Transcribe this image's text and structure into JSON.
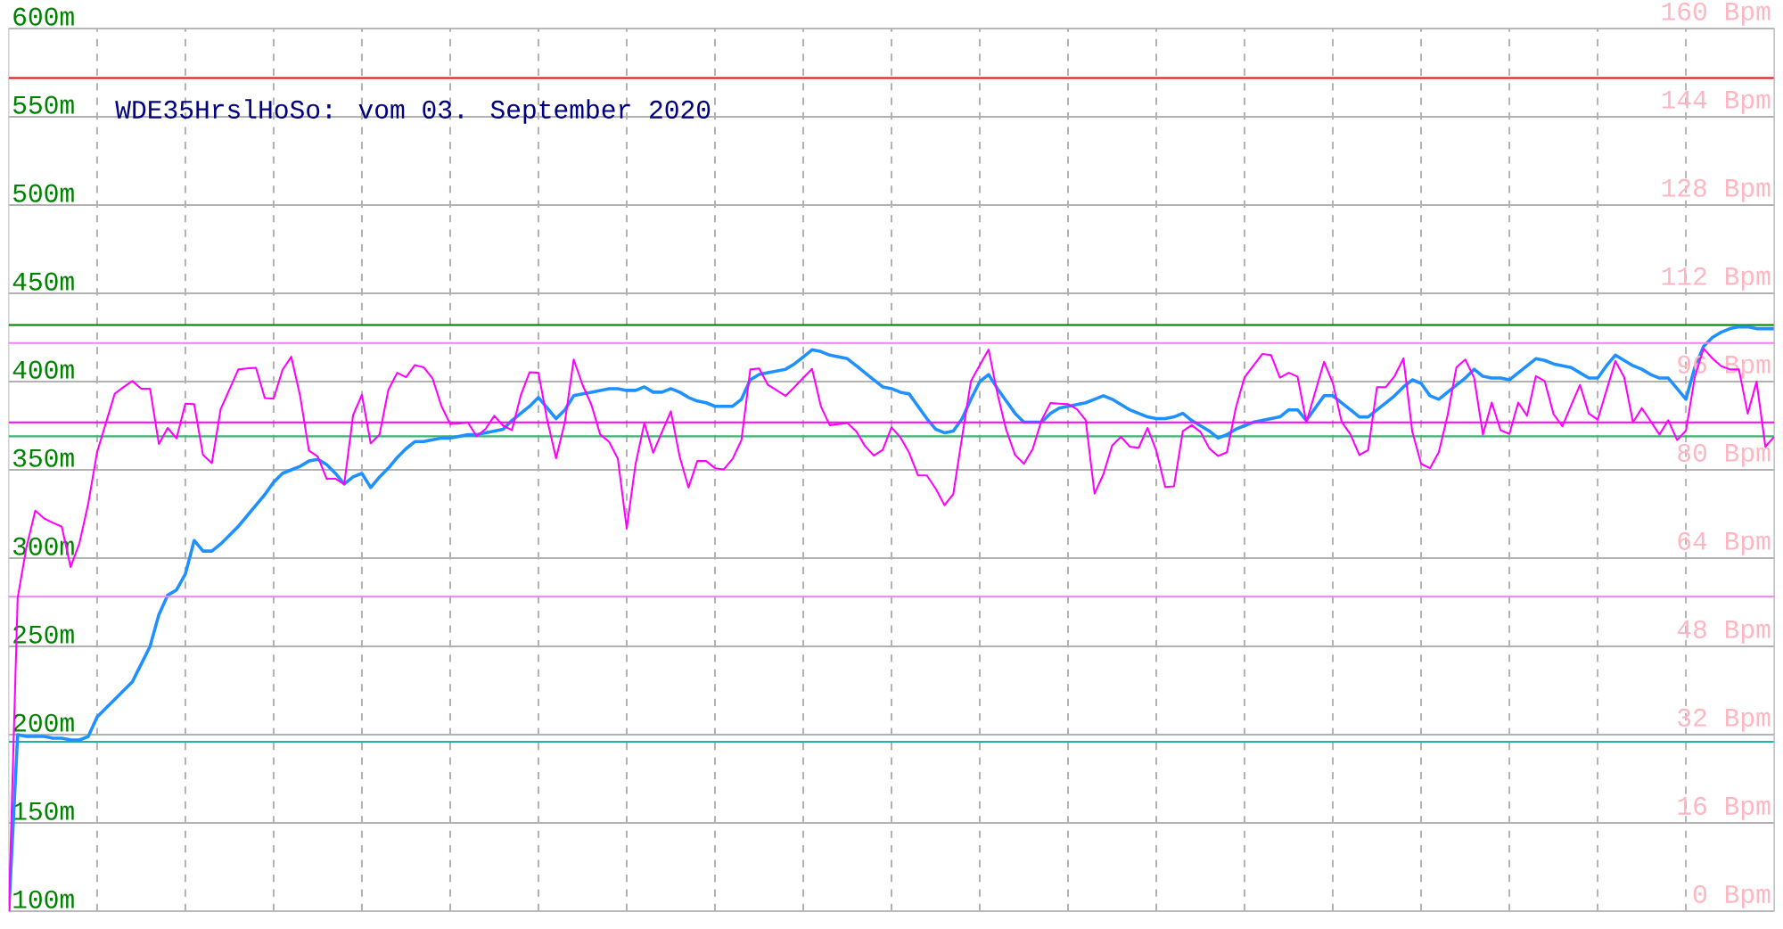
{
  "chart_data": {
    "type": "line",
    "title": "WDE35HrslHoSo: vom 03. September 2020",
    "categories": [
      null,
      null,
      null,
      null,
      null,
      null,
      null,
      null,
      null,
      null,
      null,
      null,
      null,
      null,
      null,
      null,
      null,
      null,
      null,
      null,
      null,
      null,
      null,
      null,
      null,
      null,
      null,
      null,
      null,
      null,
      null,
      null,
      null,
      null,
      null,
      null,
      null,
      null,
      null,
      null,
      null,
      null,
      null,
      null,
      null,
      null,
      null,
      null,
      null,
      null,
      null,
      null,
      null,
      null,
      null,
      null,
      null,
      null,
      null,
      null,
      null,
      null,
      null,
      null,
      null,
      null,
      null,
      null,
      null,
      null,
      null,
      null,
      null,
      null,
      null,
      null,
      null,
      null,
      null,
      null,
      null,
      null,
      null,
      null,
      null,
      null,
      null,
      null,
      null,
      null,
      null,
      null,
      null,
      null,
      null,
      null,
      null,
      null,
      null,
      null,
      null,
      null,
      null,
      null,
      null,
      null,
      null,
      null,
      null,
      null,
      null,
      null,
      null,
      null,
      null,
      null,
      null,
      null,
      null,
      null,
      null,
      null,
      null,
      null,
      null,
      null,
      null,
      null,
      null,
      null,
      null,
      null,
      null,
      null,
      null,
      null,
      null,
      null,
      null,
      null,
      null,
      null,
      null,
      null,
      null,
      null,
      null,
      null,
      null,
      null,
      null,
      null,
      null,
      null,
      null,
      null,
      null,
      null,
      null,
      null,
      null,
      null,
      null,
      null,
      null,
      null,
      null,
      null,
      null,
      null,
      null,
      null,
      null,
      null,
      null,
      null,
      null,
      null,
      null,
      null,
      null,
      null,
      null,
      null,
      null,
      null,
      null,
      null,
      null,
      null,
      null,
      null,
      null,
      null,
      null,
      null,
      null,
      null,
      null,
      null,
      null
    ],
    "ylim": [
      100,
      600
    ],
    "yticks": [
      {
        "value": 100,
        "label": "100m"
      },
      {
        "value": 150,
        "label": "150m"
      },
      {
        "value": 200,
        "label": "200m"
      },
      {
        "value": 250,
        "label": "250m"
      },
      {
        "value": 300,
        "label": "300m"
      },
      {
        "value": 350,
        "label": "350m"
      },
      {
        "value": 400,
        "label": "400m"
      },
      {
        "value": 450,
        "label": "450m"
      },
      {
        "value": 500,
        "label": "500m"
      },
      {
        "value": 550,
        "label": "550m"
      },
      {
        "value": 600,
        "label": "600m"
      }
    ],
    "y2lim": [
      0,
      160
    ],
    "y2ticks": [
      {
        "value": 0,
        "label": "0 Bpm"
      },
      {
        "value": 16,
        "label": "16 Bpm"
      },
      {
        "value": 32,
        "label": "32 Bpm"
      },
      {
        "value": 48,
        "label": "48 Bpm"
      },
      {
        "value": 64,
        "label": "64 Bpm"
      },
      {
        "value": 80,
        "label": "80 Bpm"
      },
      {
        "value": 96,
        "label": "96 Bpm"
      },
      {
        "value": 112,
        "label": "112 Bpm"
      },
      {
        "value": 128,
        "label": "128 Bpm"
      },
      {
        "value": 144,
        "label": "144 Bpm"
      },
      {
        "value": 160,
        "label": "160 Bpm"
      }
    ],
    "grid": true,
    "series": [
      {
        "color": "#1e90ff",
        "values": [
          100,
          200,
          199,
          199,
          199,
          198,
          198,
          197,
          197,
          199,
          210,
          215,
          220,
          225,
          230,
          240,
          250,
          268,
          279,
          282,
          291,
          310,
          304,
          304,
          308,
          313,
          318,
          324,
          330,
          336,
          343,
          348,
          350,
          352,
          355,
          356,
          353,
          348,
          342,
          346,
          348,
          340,
          346,
          351,
          357,
          362,
          366,
          366,
          367,
          368,
          368,
          369,
          370,
          370,
          371,
          372,
          373,
          378,
          382,
          386,
          391,
          385,
          379,
          384,
          392,
          393,
          394,
          395,
          396,
          396,
          395,
          395,
          397,
          394,
          394,
          396,
          394,
          391,
          389,
          388,
          386,
          386,
          386,
          390,
          401,
          404,
          405,
          406,
          407,
          410,
          414,
          418,
          417,
          415,
          414,
          413,
          409,
          405,
          401,
          397,
          396,
          394,
          393,
          386,
          379,
          373,
          371,
          372,
          379,
          390,
          400,
          404,
          396,
          389,
          382,
          377,
          377,
          377,
          382,
          385,
          386,
          387,
          388,
          390,
          392,
          390,
          387,
          384,
          382,
          380,
          379,
          379,
          380,
          382,
          378,
          375,
          372,
          368,
          370,
          373,
          375,
          377,
          378,
          379,
          380,
          384,
          384,
          378,
          385,
          392,
          392,
          388,
          384,
          380,
          380,
          384,
          388,
          392,
          397,
          401,
          399,
          392,
          390,
          394,
          398,
          402,
          407,
          403,
          402,
          402,
          401,
          405,
          409,
          413,
          412,
          410,
          409,
          408,
          405,
          402,
          402,
          409,
          415,
          412,
          409,
          407,
          404,
          402,
          402,
          396,
          390,
          408,
          420,
          425,
          428,
          430,
          431,
          431,
          430,
          430,
          430
        ]
      },
      {
        "color": "#ff00ff",
        "axis": "y2",
        "values": [
          0,
          56.8,
          66.0,
          72.6,
          71.2,
          70.4,
          69.7,
          62.4,
          66.7,
          73.9,
          83.2,
          88.5,
          93.8,
          95.0,
          96.1,
          94.7,
          94.7,
          84.7,
          87.6,
          85.7,
          92.0,
          91.9,
          82.7,
          81.2,
          91.0,
          94.6,
          98.2,
          98.4,
          98.5,
          93.0,
          92.9,
          98.1,
          100.5,
          93.4,
          83.5,
          82.4,
          78.4,
          78.4,
          77.4,
          89.9,
          93.6,
          84.8,
          86.4,
          94.5,
          97.6,
          96.8,
          99.0,
          98.6,
          96.6,
          91.6,
          88.3,
          88.4,
          88.6,
          86.1,
          87.4,
          89.8,
          88,
          87.2,
          93.5,
          97.7,
          97.6,
          89,
          82.1,
          88.7,
          100,
          95.4,
          91.8,
          86.4,
          85.1,
          82,
          69.4,
          81,
          88.5,
          83.1,
          86.9,
          90.6,
          82.4,
          76.8,
          81.6,
          81.6,
          80.3,
          80.1,
          82,
          85.4,
          98.2,
          98.4,
          95.4,
          94.4,
          93.4,
          95,
          96.7,
          98.3,
          91.5,
          88.1,
          88.3,
          88.5,
          87,
          84.3,
          82.6,
          83.6,
          87.7,
          85.9,
          83.1,
          79,
          79,
          76.6,
          73.6,
          75.6,
          86,
          96.1,
          99,
          101.8,
          93.8,
          87.2,
          82.7,
          81.1,
          83.8,
          89,
          92.1,
          92,
          91.9,
          91,
          89,
          75.7,
          79.2,
          84.4,
          86,
          84.2,
          84,
          87.6,
          83.5,
          76.9,
          77,
          87,
          88.1,
          86.9,
          83.9,
          82.5,
          83.2,
          91.2,
          96.8,
          98.9,
          101,
          100.8,
          96.7,
          97.6,
          96.9,
          88.6,
          94.1,
          99.6,
          95.7,
          88.7,
          86.4,
          82.7,
          83.6,
          95,
          95,
          97,
          100.2,
          86.9,
          81.1,
          80.3,
          83.2,
          89.9,
          98.6,
          100,
          96.7,
          86.4,
          92.2,
          87.2,
          86.5,
          92.2,
          89.8,
          97,
          96.1,
          90.1,
          87.9,
          91.7,
          95.4,
          90.2,
          89.1,
          94.4,
          99.7,
          96.8,
          88.6,
          91.2,
          88.8,
          86.4,
          89,
          85.4,
          87.1,
          96.8,
          102,
          100.2,
          98.8,
          98.2,
          98.2,
          90.2,
          96,
          84.2,
          86
        ]
      }
    ],
    "ref_lines": [
      {
        "axis": "y",
        "value": 572,
        "color": "#ff0000"
      },
      {
        "axis": "y",
        "value": 432,
        "color": "#008000"
      },
      {
        "axis": "y2",
        "value": 103,
        "color": "#ee82ee"
      },
      {
        "axis": "y2",
        "value": 88.6,
        "color": "#ff00ff"
      },
      {
        "axis": "y",
        "value": 369,
        "color": "#3cb371"
      },
      {
        "axis": "y2",
        "value": 57,
        "color": "#ee82ee"
      },
      {
        "axis": "y",
        "value": 196,
        "color": "#20b2aa"
      }
    ]
  }
}
